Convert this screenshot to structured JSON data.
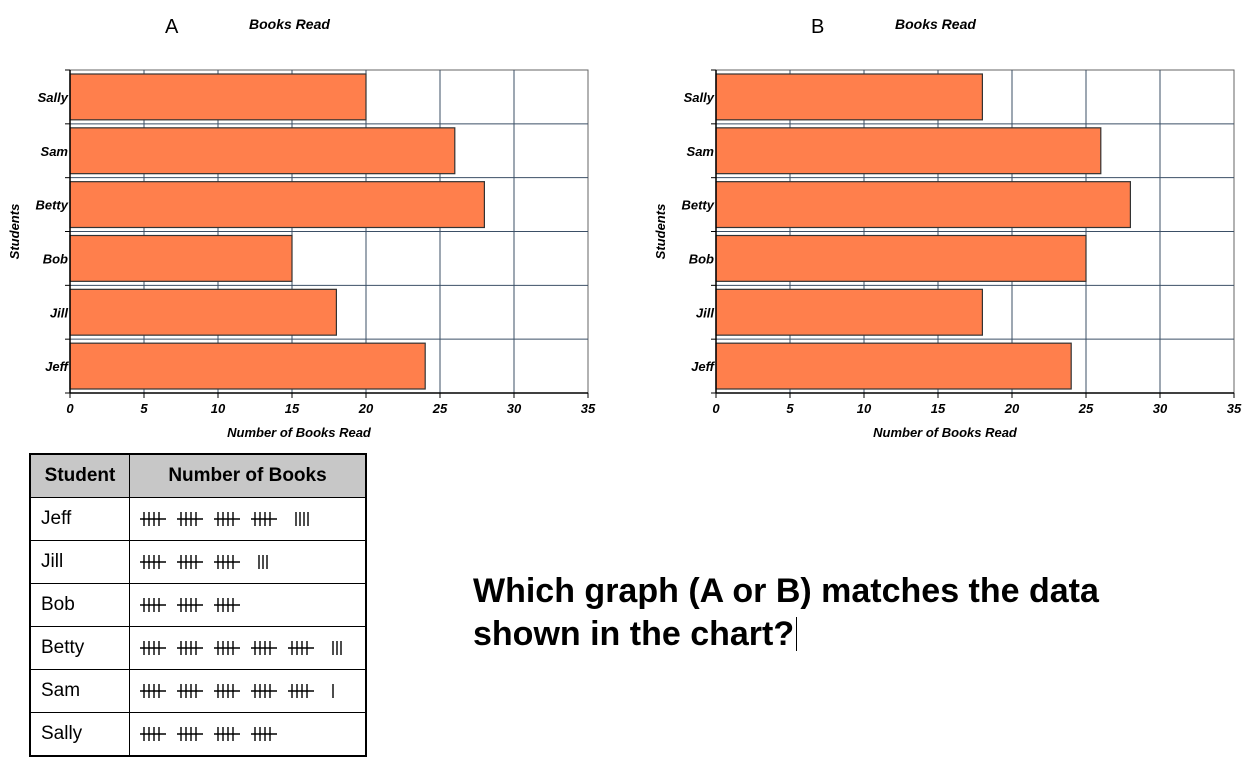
{
  "chart_data": [
    {
      "type": "bar",
      "orientation": "horizontal",
      "panel_label": "A",
      "title": "Books Read",
      "xlabel": "Number of Books Read",
      "ylabel": "Students",
      "categories": [
        "Sally",
        "Sam",
        "Betty",
        "Bob",
        "Jill",
        "Jeff"
      ],
      "values": [
        20,
        26,
        28,
        15,
        18,
        24
      ],
      "xlim": [
        0,
        35
      ],
      "xticks": [
        0,
        5,
        10,
        15,
        20,
        25,
        30,
        35
      ],
      "grid": true,
      "bar_color": "#ff7f4c"
    },
    {
      "type": "bar",
      "orientation": "horizontal",
      "panel_label": "B",
      "title": "Books Read",
      "xlabel": "Number of Books Read",
      "ylabel": "Students",
      "categories": [
        "Sally",
        "Sam",
        "Betty",
        "Bob",
        "Jill",
        "Jeff"
      ],
      "values": [
        18,
        26,
        28,
        25,
        18,
        24
      ],
      "xlim": [
        0,
        35
      ],
      "xticks": [
        0,
        5,
        10,
        15,
        20,
        25,
        30,
        35
      ],
      "grid": true,
      "bar_color": "#ff7f4c"
    }
  ],
  "tally_table": {
    "headers": [
      "Student",
      "Number of Books"
    ],
    "rows": [
      {
        "student": "Jeff",
        "count": 24
      },
      {
        "student": "Jill",
        "count": 18
      },
      {
        "student": "Bob",
        "count": 15
      },
      {
        "student": "Betty",
        "count": 28
      },
      {
        "student": "Sam",
        "count": 26
      },
      {
        "student": "Sally",
        "count": 20
      }
    ]
  },
  "question": "Which graph (A or B) matches the data shown in the chart?"
}
